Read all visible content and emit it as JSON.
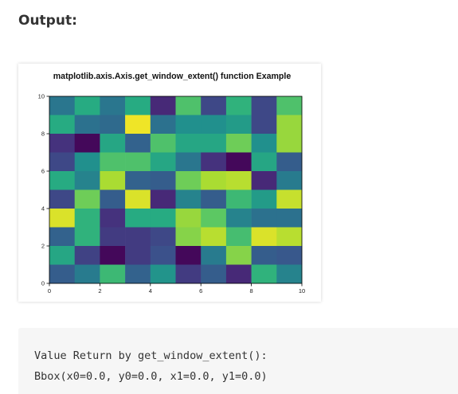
{
  "page": {
    "heading": "Output:"
  },
  "output_text": {
    "lines": [
      "Value Return by get_window_extent():",
      "Bbox(x0=0.0, y0=0.0, x1=0.0, y1=0.0)"
    ]
  },
  "chart_data": {
    "type": "heatmap",
    "title": "matplotlib.axis.Axis.get_window_extent() function Example",
    "xlabel": "",
    "ylabel": "",
    "xlim": [
      0,
      10
    ],
    "ylim": [
      0,
      10
    ],
    "x_ticks": [
      0,
      2,
      4,
      6,
      8,
      10
    ],
    "y_ticks": [
      0,
      2,
      4,
      6,
      8,
      10
    ],
    "colormap": "viridis",
    "value_range": [
      0,
      1
    ],
    "rows_note": "rows listed from top (y=9..10) to bottom (y=0..1)",
    "values": [
      [
        0.4,
        0.62,
        0.4,
        0.62,
        0.12,
        0.72,
        0.22,
        0.65,
        0.22,
        0.72
      ],
      [
        0.62,
        0.38,
        0.35,
        0.98,
        0.38,
        0.5,
        0.5,
        0.55,
        0.22,
        0.85
      ],
      [
        0.15,
        0.02,
        0.6,
        0.32,
        0.72,
        0.6,
        0.6,
        0.78,
        0.5,
        0.85
      ],
      [
        0.22,
        0.5,
        0.72,
        0.72,
        0.6,
        0.4,
        0.15,
        0.02,
        0.6,
        0.3
      ],
      [
        0.62,
        0.45,
        0.88,
        0.32,
        0.3,
        0.78,
        0.88,
        0.9,
        0.12,
        0.42
      ],
      [
        0.22,
        0.78,
        0.3,
        0.95,
        0.12,
        0.45,
        0.3,
        0.68,
        0.55,
        0.92
      ],
      [
        0.95,
        0.65,
        0.15,
        0.62,
        0.62,
        0.85,
        0.75,
        0.45,
        0.38,
        0.38
      ],
      [
        0.32,
        0.65,
        0.18,
        0.18,
        0.22,
        0.82,
        0.9,
        0.7,
        0.95,
        0.9
      ],
      [
        0.6,
        0.2,
        0.02,
        0.18,
        0.25,
        0.02,
        0.42,
        0.82,
        0.3,
        0.28
      ],
      [
        0.3,
        0.42,
        0.68,
        0.32,
        0.52,
        0.18,
        0.3,
        0.12,
        0.65,
        0.45
      ]
    ]
  }
}
